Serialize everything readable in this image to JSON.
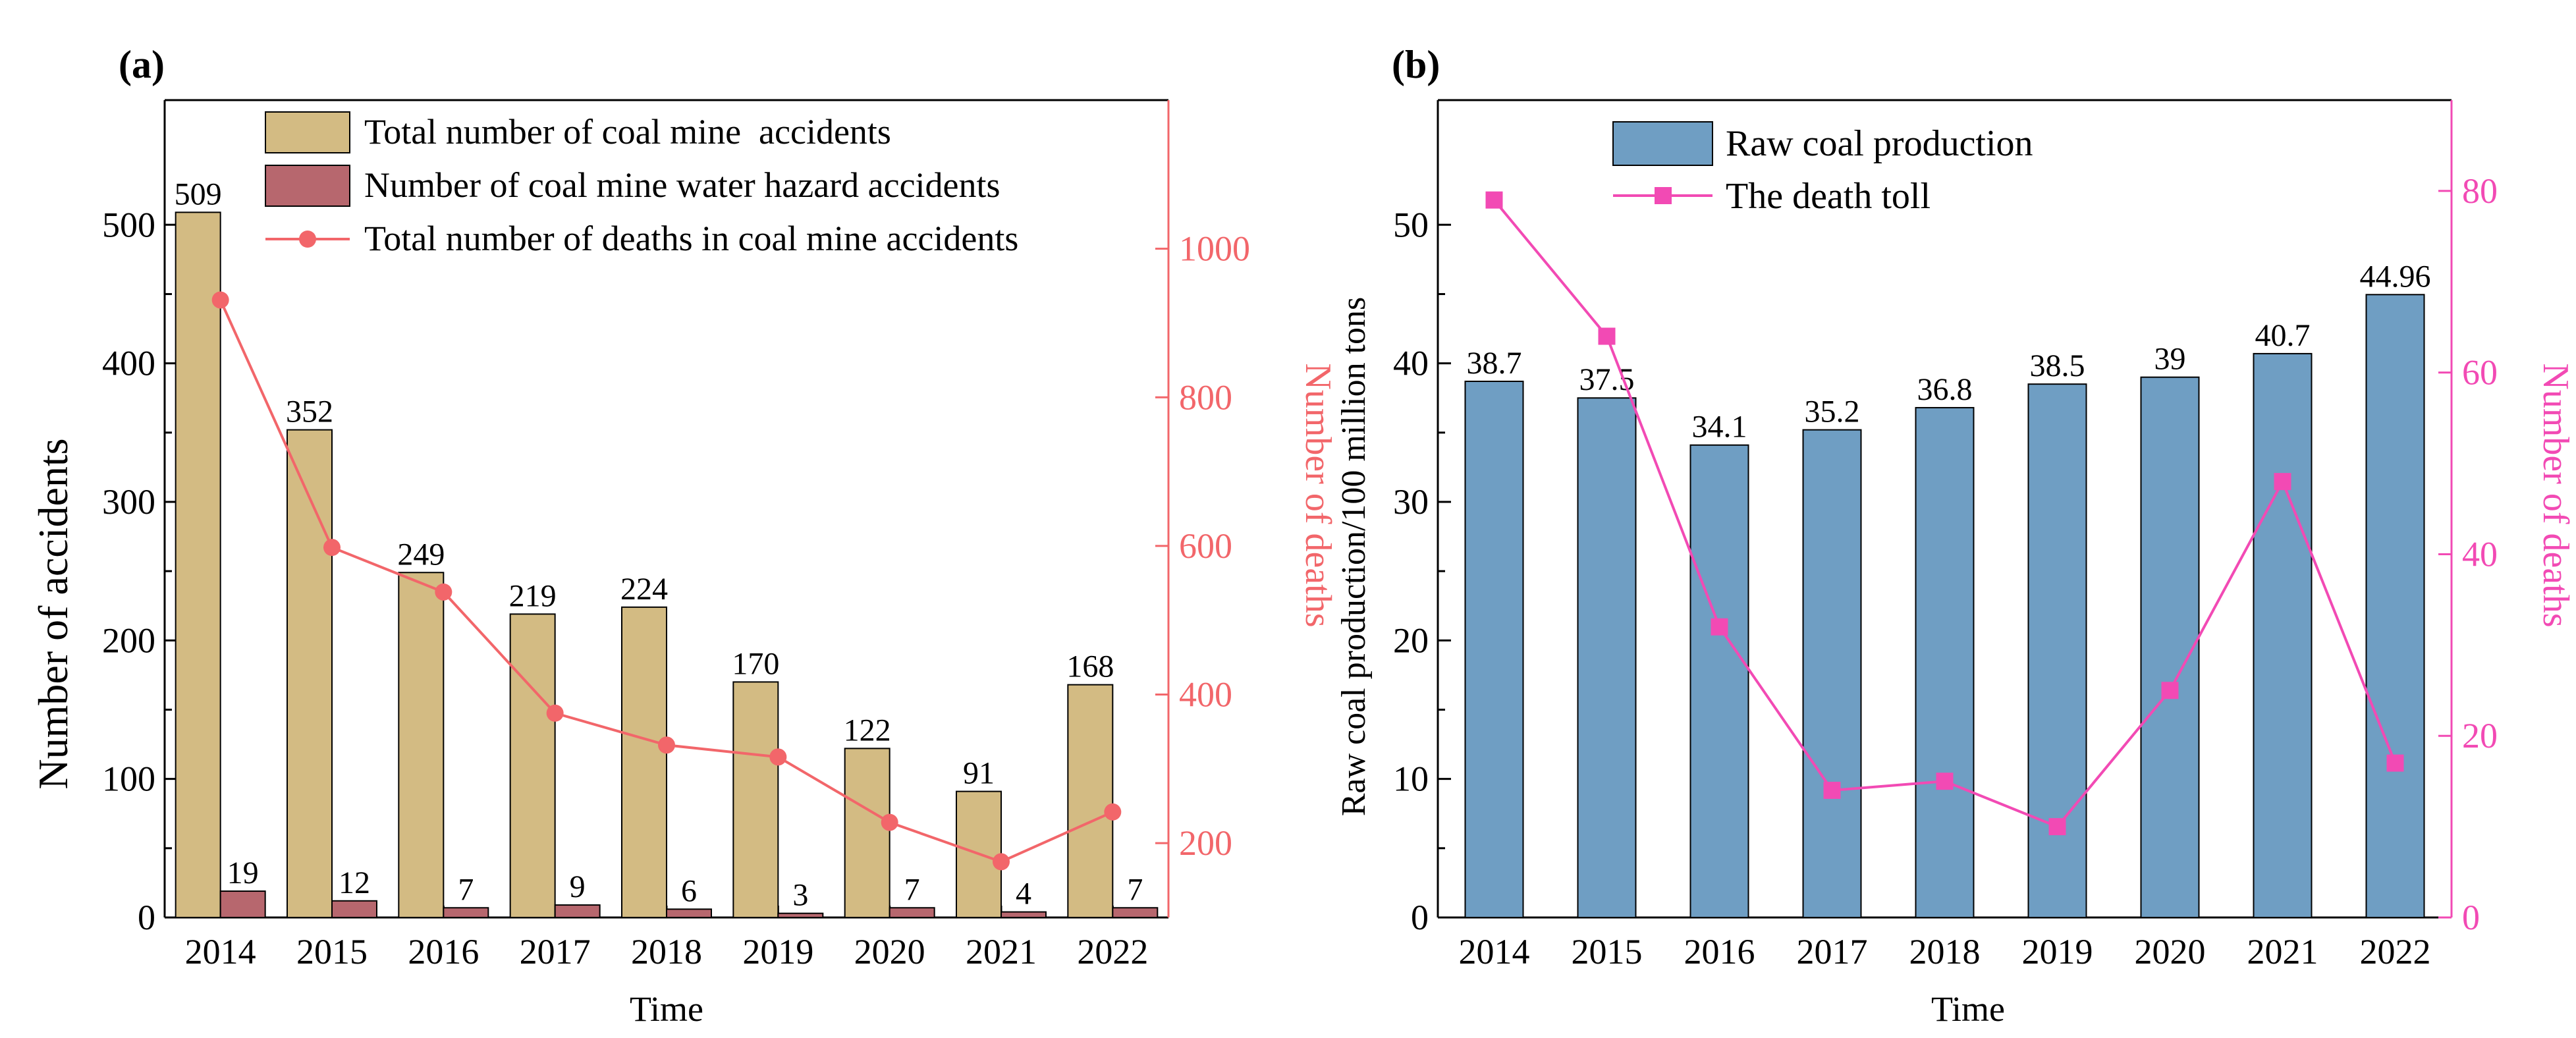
{
  "colors": {
    "total_bar": "#d3bb83",
    "water_bar": "#b7676e",
    "deaths_a": "#f2666a",
    "production_bar": "#6f9ec3",
    "deaths_b": "#f24ab4",
    "axis": "#000000"
  },
  "chart_data": [
    {
      "panel_label": "(a)",
      "type": "bar",
      "categories": [
        "2014",
        "2015",
        "2016",
        "2017",
        "2018",
        "2019",
        "2020",
        "2021",
        "2022"
      ],
      "series": [
        {
          "name": "Total number of coal mine  accidents",
          "values": [
            509,
            352,
            249,
            219,
            224,
            170,
            122,
            91,
            168
          ],
          "axis": "left"
        },
        {
          "name": "Number of coal mine water hazard accidents",
          "values": [
            19,
            12,
            7,
            9,
            6,
            3,
            7,
            4,
            7
          ],
          "axis": "left"
        },
        {
          "name": "Total number of deaths in coal mine accidents",
          "type": "line",
          "values": [
            931,
            598,
            538,
            375,
            332,
            316,
            228,
            175,
            242
          ],
          "axis": "right"
        }
      ],
      "xlabel": "Time",
      "ylabel": "Number of   accidents",
      "y2label": "Number of deaths",
      "ylim": [
        0,
        590
      ],
      "yticks": [
        "0",
        "100",
        "200",
        "300",
        "400",
        "500"
      ],
      "y2lim": [
        100,
        1200
      ],
      "y2ticks": [
        "200",
        "400",
        "600",
        "800",
        "1000"
      ],
      "legend": "top"
    },
    {
      "panel_label": "(b)",
      "type": "bar",
      "categories": [
        "2014",
        "2015",
        "2016",
        "2017",
        "2018",
        "2019",
        "2020",
        "2021",
        "2022"
      ],
      "series": [
        {
          "name": "Raw coal production",
          "values": [
            38.7,
            37.5,
            34.1,
            35.2,
            36.8,
            38.5,
            39,
            40.7,
            44.96
          ],
          "labels": [
            "38.7",
            "37.5",
            "34.1",
            "35.2",
            "36.8",
            "38.5",
            "39",
            "40.7",
            "44.96"
          ],
          "axis": "left"
        },
        {
          "name": "The death toll",
          "type": "line",
          "values": [
            79,
            64,
            32,
            14,
            15,
            10,
            25,
            48,
            17
          ],
          "axis": "right"
        }
      ],
      "xlabel": "Time",
      "ylabel": "Raw coal production/100 million tons",
      "y2label": "Number of deaths",
      "ylim": [
        0,
        59
      ],
      "yticks": [
        "0",
        "10",
        "20",
        "30",
        "40",
        "50"
      ],
      "y2lim": [
        0,
        90
      ],
      "y2ticks": [
        "0",
        "20",
        "40",
        "60",
        "80"
      ],
      "legend": "top-left"
    }
  ]
}
